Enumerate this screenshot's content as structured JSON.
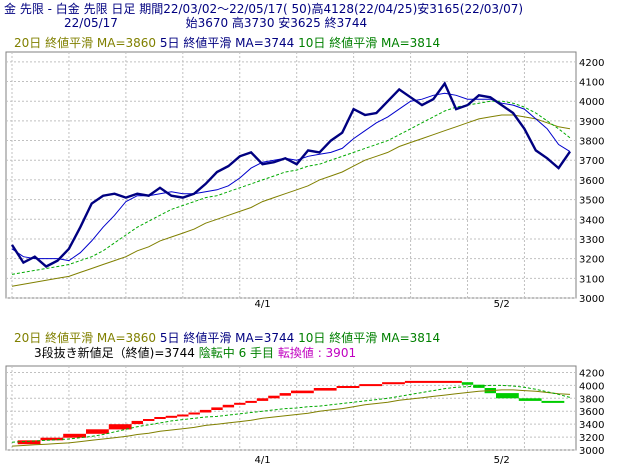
{
  "header": {
    "line1": "金 先限 - 白金 先限 日足 期間22/03/02〜22/05/17( 50)高4128(22/04/25)安3165(22/03/07)",
    "date": "22/05/17",
    "ohlc": "始3670 高3730 安3625 終3744"
  },
  "legend": {
    "ma20": "20日 終値平滑 MA=3860",
    "ma5": "5日 終値平滑 MA=3744",
    "ma10": "10日 終値平滑 MA=3814"
  },
  "status": {
    "label": "3段抜き新値足（終値)=3744",
    "trend": "陰転中",
    "count": "6 手目",
    "reversal": "転換値 : 3901"
  },
  "colors": {
    "price": "#000080",
    "ma5": "#0000cc",
    "ma10": "#00aa00",
    "ma20": "#808000",
    "up_block": "#ff0000",
    "down_block": "#00cc00",
    "grid": "#c0c0c0"
  },
  "chart_data": [
    {
      "type": "line",
      "x_ticks": [
        "4/1",
        "5/2"
      ],
      "y_ticks": [
        3000,
        3100,
        3200,
        3300,
        3400,
        3500,
        3600,
        3700,
        3800,
        3900,
        4000,
        4100,
        4200
      ],
      "ylim": [
        3000,
        4250
      ],
      "n_points": 50,
      "grid": true,
      "series": [
        {
          "key": "close",
          "values": [
            3270,
            3180,
            3210,
            3160,
            3190,
            3250,
            3360,
            3480,
            3520,
            3530,
            3510,
            3530,
            3520,
            3560,
            3520,
            3510,
            3530,
            3580,
            3640,
            3670,
            3720,
            3740,
            3680,
            3690,
            3710,
            3680,
            3750,
            3740,
            3800,
            3840,
            3960,
            3930,
            3940,
            4000,
            4060,
            4020,
            3980,
            4010,
            4090,
            3960,
            3980,
            4030,
            4020,
            3980,
            3940,
            3860,
            3750,
            3710,
            3660,
            3744
          ]
        },
        {
          "key": "ma5",
          "values": [
            3250,
            3210,
            3200,
            3200,
            3200,
            3190,
            3230,
            3290,
            3360,
            3420,
            3490,
            3520,
            3520,
            3530,
            3540,
            3530,
            3530,
            3540,
            3550,
            3570,
            3610,
            3660,
            3690,
            3700,
            3710,
            3700,
            3720,
            3730,
            3740,
            3760,
            3810,
            3850,
            3890,
            3920,
            3960,
            4000,
            4010,
            4030,
            4040,
            4030,
            4010,
            4010,
            4010,
            3990,
            3980,
            3960,
            3910,
            3860,
            3780,
            3744
          ]
        },
        {
          "key": "ma10",
          "values": [
            3120,
            3130,
            3140,
            3150,
            3160,
            3170,
            3190,
            3210,
            3240,
            3280,
            3320,
            3360,
            3390,
            3420,
            3450,
            3470,
            3490,
            3510,
            3520,
            3540,
            3560,
            3580,
            3600,
            3620,
            3640,
            3650,
            3670,
            3680,
            3700,
            3720,
            3740,
            3760,
            3780,
            3800,
            3830,
            3860,
            3890,
            3920,
            3950,
            3970,
            3980,
            3990,
            4000,
            4000,
            3990,
            3970,
            3940,
            3900,
            3860,
            3814
          ]
        },
        {
          "key": "ma20",
          "values": [
            3060,
            3070,
            3080,
            3090,
            3100,
            3110,
            3130,
            3150,
            3170,
            3190,
            3210,
            3240,
            3260,
            3290,
            3310,
            3330,
            3350,
            3380,
            3400,
            3420,
            3440,
            3460,
            3490,
            3510,
            3530,
            3550,
            3570,
            3600,
            3620,
            3640,
            3670,
            3700,
            3720,
            3740,
            3770,
            3790,
            3810,
            3830,
            3850,
            3870,
            3890,
            3910,
            3920,
            3930,
            3930,
            3920,
            3910,
            3890,
            3870,
            3860
          ]
        }
      ]
    },
    {
      "type": "bar",
      "title": "3段抜き新値足",
      "y_ticks": [
        3000,
        3200,
        3400,
        3600,
        3800,
        4000,
        4200
      ],
      "ylim": [
        3000,
        4300
      ],
      "blocks": [
        {
          "low": 3090,
          "high": 3150,
          "dir": "up"
        },
        {
          "low": 3150,
          "high": 3190,
          "dir": "up"
        },
        {
          "low": 3190,
          "high": 3250,
          "dir": "up"
        },
        {
          "low": 3250,
          "high": 3320,
          "dir": "up"
        },
        {
          "low": 3320,
          "high": 3400,
          "dir": "up"
        },
        {
          "low": 3400,
          "high": 3450,
          "dir": "up"
        },
        {
          "low": 3450,
          "high": 3480,
          "dir": "up"
        },
        {
          "low": 3480,
          "high": 3510,
          "dir": "up"
        },
        {
          "low": 3510,
          "high": 3530,
          "dir": "up"
        },
        {
          "low": 3530,
          "high": 3550,
          "dir": "up"
        },
        {
          "low": 3550,
          "high": 3580,
          "dir": "up"
        },
        {
          "low": 3580,
          "high": 3620,
          "dir": "up"
        },
        {
          "low": 3620,
          "high": 3660,
          "dir": "up"
        },
        {
          "low": 3660,
          "high": 3700,
          "dir": "up"
        },
        {
          "low": 3700,
          "high": 3730,
          "dir": "up"
        },
        {
          "low": 3730,
          "high": 3760,
          "dir": "up"
        },
        {
          "low": 3760,
          "high": 3800,
          "dir": "up"
        },
        {
          "low": 3800,
          "high": 3840,
          "dir": "up"
        },
        {
          "low": 3840,
          "high": 3880,
          "dir": "up"
        },
        {
          "low": 3880,
          "high": 3920,
          "dir": "up"
        },
        {
          "low": 3920,
          "high": 3960,
          "dir": "up"
        },
        {
          "low": 3960,
          "high": 3990,
          "dir": "up"
        },
        {
          "low": 3990,
          "high": 4020,
          "dir": "up"
        },
        {
          "low": 4020,
          "high": 4050,
          "dir": "up"
        },
        {
          "low": 4050,
          "high": 4070,
          "dir": "up"
        },
        {
          "low": 4010,
          "high": 4050,
          "dir": "down"
        },
        {
          "low": 3960,
          "high": 4010,
          "dir": "down"
        },
        {
          "low": 3880,
          "high": 3960,
          "dir": "down"
        },
        {
          "low": 3800,
          "high": 3880,
          "dir": "down"
        },
        {
          "low": 3760,
          "high": 3800,
          "dir": "down"
        },
        {
          "low": 3744,
          "high": 3760,
          "dir": "down"
        }
      ],
      "block_x": [
        1,
        3,
        5,
        7,
        9,
        11,
        12,
        13,
        14,
        15,
        16,
        17,
        18,
        19,
        20,
        21,
        22,
        23,
        24,
        25,
        27,
        29,
        31,
        33,
        35,
        40,
        41,
        42,
        43,
        45,
        47
      ],
      "block_w": [
        2,
        2,
        2,
        2,
        2,
        1,
        1,
        1,
        1,
        1,
        1,
        1,
        1,
        1,
        1,
        1,
        1,
        1,
        1,
        2,
        2,
        2,
        2,
        2,
        5,
        1,
        1,
        1,
        2,
        2,
        2
      ],
      "ma20": [
        3060,
        3070,
        3080,
        3090,
        3100,
        3110,
        3130,
        3150,
        3170,
        3190,
        3210,
        3240,
        3260,
        3290,
        3310,
        3330,
        3350,
        3380,
        3400,
        3420,
        3440,
        3460,
        3490,
        3510,
        3530,
        3550,
        3570,
        3600,
        3620,
        3640,
        3670,
        3700,
        3720,
        3740,
        3770,
        3790,
        3810,
        3830,
        3850,
        3870,
        3890,
        3910,
        3920,
        3930,
        3930,
        3920,
        3910,
        3890,
        3870,
        3860
      ],
      "ma10": [
        3120,
        3130,
        3140,
        3150,
        3160,
        3170,
        3190,
        3210,
        3240,
        3280,
        3320,
        3360,
        3390,
        3420,
        3450,
        3470,
        3490,
        3510,
        3520,
        3540,
        3560,
        3580,
        3600,
        3620,
        3640,
        3650,
        3670,
        3680,
        3700,
        3720,
        3740,
        3760,
        3780,
        3800,
        3830,
        3860,
        3890,
        3920,
        3950,
        3970,
        3980,
        3990,
        4000,
        4000,
        3990,
        3970,
        3940,
        3900,
        3860,
        3814
      ]
    }
  ]
}
